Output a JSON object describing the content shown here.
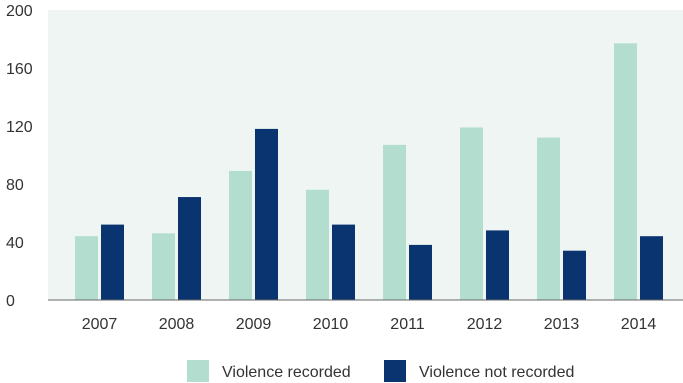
{
  "chart_data": {
    "type": "bar",
    "title": "",
    "xlabel": "",
    "ylabel": "",
    "categories": [
      "2007",
      "2008",
      "2009",
      "2010",
      "2011",
      "2012",
      "2013",
      "2014"
    ],
    "series": [
      {
        "name": "Violence recorded",
        "values": [
          44,
          46,
          89,
          76,
          107,
          119,
          112,
          177
        ],
        "color": "#b3ddcf"
      },
      {
        "name": "Violence not recorded",
        "values": [
          52,
          71,
          118,
          52,
          38,
          48,
          34,
          44
        ],
        "color": "#0a3470"
      }
    ],
    "ylim": [
      0,
      200
    ],
    "yticks": [
      "0",
      "40",
      "80",
      "120",
      "160",
      "200"
    ],
    "grid": false,
    "legend_position": "bottom-center",
    "plot_background": "#eef5f2"
  }
}
